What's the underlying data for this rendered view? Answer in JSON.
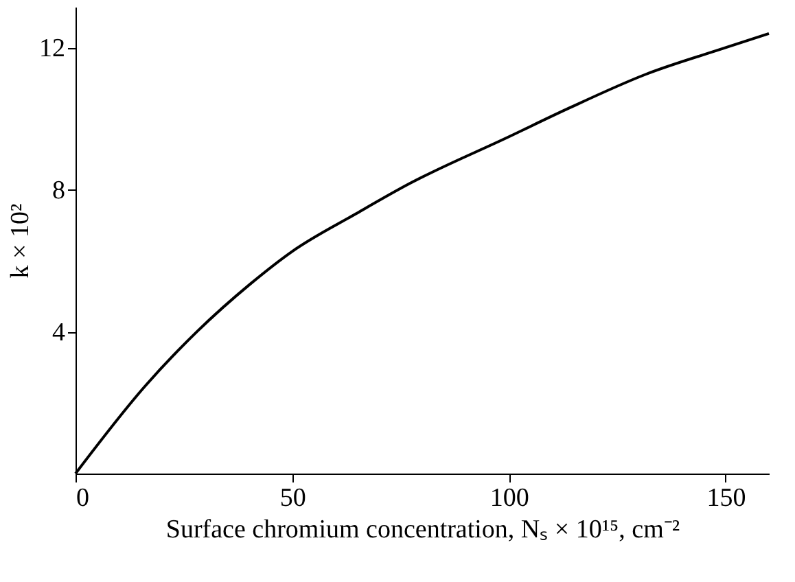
{
  "chart_data": {
    "type": "line",
    "xlabel": "Surface chromium concentration, Nₛ × 10¹⁵, cm⁻²",
    "ylabel": "k × 10²",
    "series": [
      {
        "color": "#000000",
        "x": [
          0,
          16.1,
          28.2,
          40.4,
          50,
          64.7,
          76.9,
          100,
          113.4,
          131.6,
          150,
          160
        ],
        "values": [
          0,
          2.47,
          4.02,
          5.35,
          6.26,
          7.32,
          8.16,
          9.49,
          10.27,
          11.25,
          12.0,
          12.4
        ]
      }
    ],
    "xlim": [
      0,
      160
    ],
    "xticks": [
      0,
      50,
      100,
      150
    ],
    "ylim": [
      0,
      13.15
    ],
    "yticks": [
      4,
      8,
      12
    ],
    "grid": false,
    "marker": "none",
    "line_style": "solid"
  }
}
